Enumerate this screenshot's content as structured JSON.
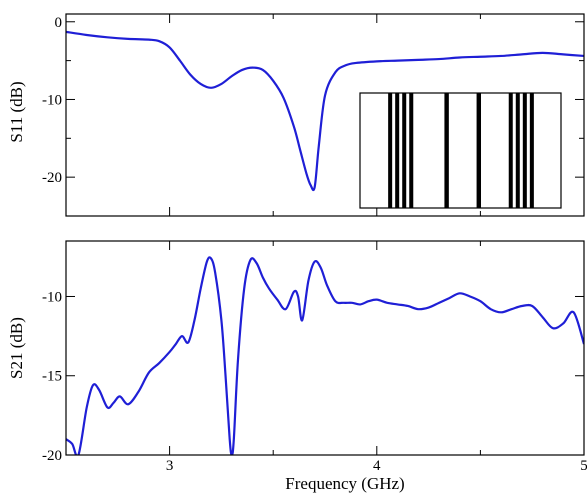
{
  "colors": {
    "series": "#1f1fd6",
    "axis": "#000000",
    "background": "#ffffff",
    "inset_bar": "#000000"
  },
  "chart_data": [
    {
      "type": "line",
      "panel": "top",
      "title": "",
      "xlabel": "",
      "ylabel": "S11 (dB)",
      "xlim": [
        2.5,
        5.0
      ],
      "ylim": [
        -25,
        1
      ],
      "grid": false,
      "x_ticks": [
        3,
        4,
        5
      ],
      "x_tick_labels_shown": false,
      "y_ticks": [
        0,
        -10,
        -20
      ],
      "y_tick_labels": [
        "0",
        "-10",
        "-20"
      ],
      "series": [
        {
          "x": [
            2.5,
            2.6,
            2.7,
            2.8,
            2.9,
            2.95,
            3.0,
            3.05,
            3.1,
            3.15,
            3.2,
            3.25,
            3.3,
            3.35,
            3.4,
            3.45,
            3.5,
            3.55,
            3.6,
            3.63,
            3.66,
            3.68,
            3.7,
            3.72,
            3.75,
            3.8,
            3.85,
            3.9,
            4.0,
            4.1,
            4.2,
            4.3,
            4.4,
            4.5,
            4.6,
            4.7,
            4.8,
            4.9,
            5.0
          ],
          "y": [
            -1.3,
            -1.7,
            -2.0,
            -2.2,
            -2.3,
            -2.5,
            -3.3,
            -5.0,
            -6.8,
            -8.0,
            -8.5,
            -8.0,
            -7.0,
            -6.2,
            -5.9,
            -6.2,
            -7.6,
            -9.8,
            -13.5,
            -16.5,
            -19.5,
            -21.0,
            -21.3,
            -16.0,
            -9.5,
            -6.5,
            -5.6,
            -5.3,
            -5.1,
            -5.0,
            -4.9,
            -4.8,
            -4.6,
            -4.5,
            -4.4,
            -4.2,
            -4.0,
            -4.2,
            -4.4
          ]
        }
      ],
      "inset": {
        "description_of_pattern": "black vertical bars on white",
        "x_range": [
          0,
          100
        ],
        "bars": [
          {
            "start": 14.0,
            "width": 2.0
          },
          {
            "start": 17.5,
            "width": 2.0
          },
          {
            "start": 21.0,
            "width": 2.0
          },
          {
            "start": 24.5,
            "width": 2.0
          },
          {
            "start": 42.0,
            "width": 2.2
          },
          {
            "start": 58.0,
            "width": 2.2
          },
          {
            "start": 74.0,
            "width": 2.0
          },
          {
            "start": 77.5,
            "width": 2.0
          },
          {
            "start": 81.0,
            "width": 2.0
          },
          {
            "start": 84.5,
            "width": 2.0
          }
        ]
      }
    },
    {
      "type": "line",
      "panel": "bottom",
      "title": "",
      "xlabel": "Frequency (GHz)",
      "ylabel": "S21 (dB)",
      "xlim": [
        2.5,
        5.0
      ],
      "ylim": [
        -20,
        -6.5
      ],
      "grid": false,
      "x_ticks": [
        3,
        4,
        5
      ],
      "x_tick_labels": [
        "3",
        "4",
        "5"
      ],
      "y_ticks": [
        -10,
        -15,
        -20
      ],
      "y_tick_labels": [
        "-10",
        "-15",
        "-20"
      ],
      "series": [
        {
          "x": [
            2.5,
            2.53,
            2.56,
            2.6,
            2.63,
            2.66,
            2.7,
            2.73,
            2.76,
            2.8,
            2.85,
            2.9,
            2.95,
            3.0,
            3.03,
            3.06,
            3.09,
            3.12,
            3.15,
            3.18,
            3.2,
            3.22,
            3.25,
            3.27,
            3.29,
            3.3,
            3.31,
            3.33,
            3.36,
            3.39,
            3.42,
            3.45,
            3.48,
            3.52,
            3.56,
            3.6,
            3.62,
            3.64,
            3.67,
            3.7,
            3.73,
            3.76,
            3.8,
            3.84,
            3.88,
            3.92,
            3.96,
            4.0,
            4.05,
            4.1,
            4.15,
            4.2,
            4.25,
            4.3,
            4.35,
            4.4,
            4.45,
            4.5,
            4.55,
            4.6,
            4.65,
            4.7,
            4.75,
            4.8,
            4.85,
            4.9,
            4.95,
            5.0
          ],
          "y": [
            -19.0,
            -19.3,
            -20.0,
            -17.0,
            -15.6,
            -15.9,
            -17.0,
            -16.7,
            -16.3,
            -16.8,
            -16.0,
            -14.8,
            -14.2,
            -13.5,
            -13.0,
            -12.5,
            -12.9,
            -11.5,
            -9.5,
            -7.8,
            -7.6,
            -8.5,
            -11.5,
            -15.0,
            -19.0,
            -20.0,
            -19.0,
            -14.0,
            -9.5,
            -7.7,
            -7.9,
            -8.8,
            -9.5,
            -10.2,
            -10.8,
            -9.7,
            -10.0,
            -11.5,
            -9.0,
            -7.8,
            -8.2,
            -9.3,
            -10.3,
            -10.4,
            -10.4,
            -10.5,
            -10.3,
            -10.2,
            -10.4,
            -10.5,
            -10.6,
            -10.8,
            -10.7,
            -10.4,
            -10.1,
            -9.8,
            -10.0,
            -10.3,
            -10.8,
            -11.0,
            -10.8,
            -10.6,
            -10.6,
            -11.3,
            -12.0,
            -11.7,
            -11.0,
            -13.0
          ]
        }
      ]
    }
  ]
}
